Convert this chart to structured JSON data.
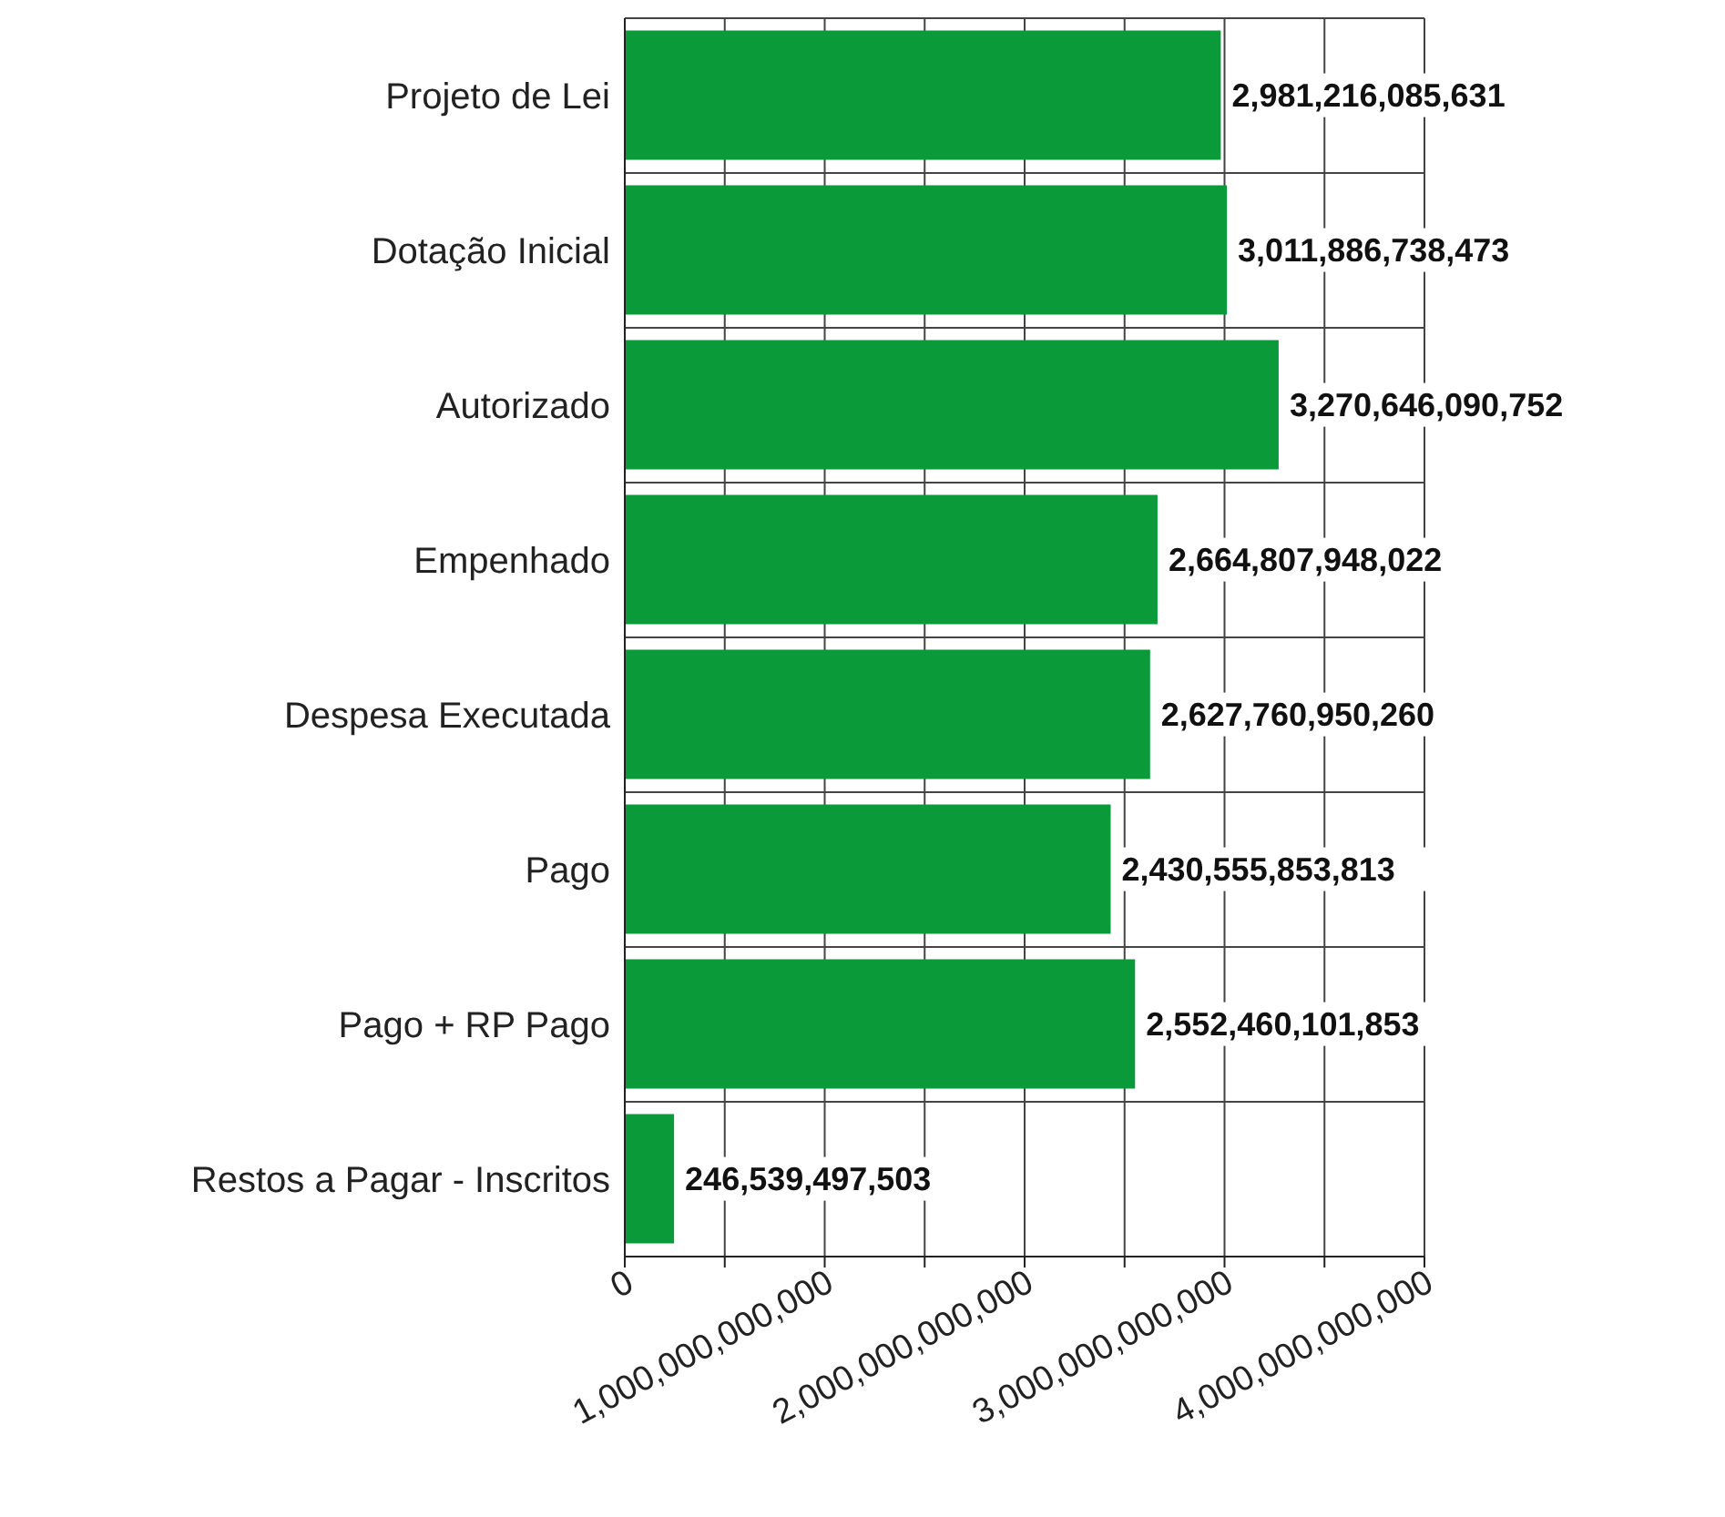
{
  "chart_data": {
    "type": "bar",
    "orientation": "horizontal",
    "categories": [
      "Projeto de Lei",
      "Dotação Inicial",
      "Autorizado",
      "Empenhado",
      "Despesa Executada",
      "Pago",
      "Pago + RP Pago",
      "Restos a Pagar - Inscritos"
    ],
    "values": [
      2981216085631,
      3011886738473,
      3270646090752,
      2664807948022,
      2627760950260,
      2430555853813,
      2552460101853,
      246539497503
    ],
    "value_labels": [
      "2,981,216,085,631",
      "3,011,886,738,473",
      "3,270,646,090,752",
      "2,664,807,948,022",
      "2,627,760,950,260",
      "2,430,555,853,813",
      "2,552,460,101,853",
      "246,539,497,503"
    ],
    "color": "#0a9a3a",
    "xlim": [
      0,
      4000000000000
    ],
    "xticks": [
      {
        "value": 0,
        "label": "0"
      },
      {
        "value": 500000000000,
        "label": null
      },
      {
        "value": 1000000000000,
        "label": "1,000,000,000,000"
      },
      {
        "value": 1500000000000,
        "label": null
      },
      {
        "value": 2000000000000,
        "label": "2,000,000,000,000"
      },
      {
        "value": 2500000000000,
        "label": null
      },
      {
        "value": 3000000000000,
        "label": "3,000,000,000,000"
      },
      {
        "value": 3500000000000,
        "label": null
      },
      {
        "value": 4000000000000,
        "label": "4,000,000,000,000"
      }
    ],
    "grid": true
  }
}
